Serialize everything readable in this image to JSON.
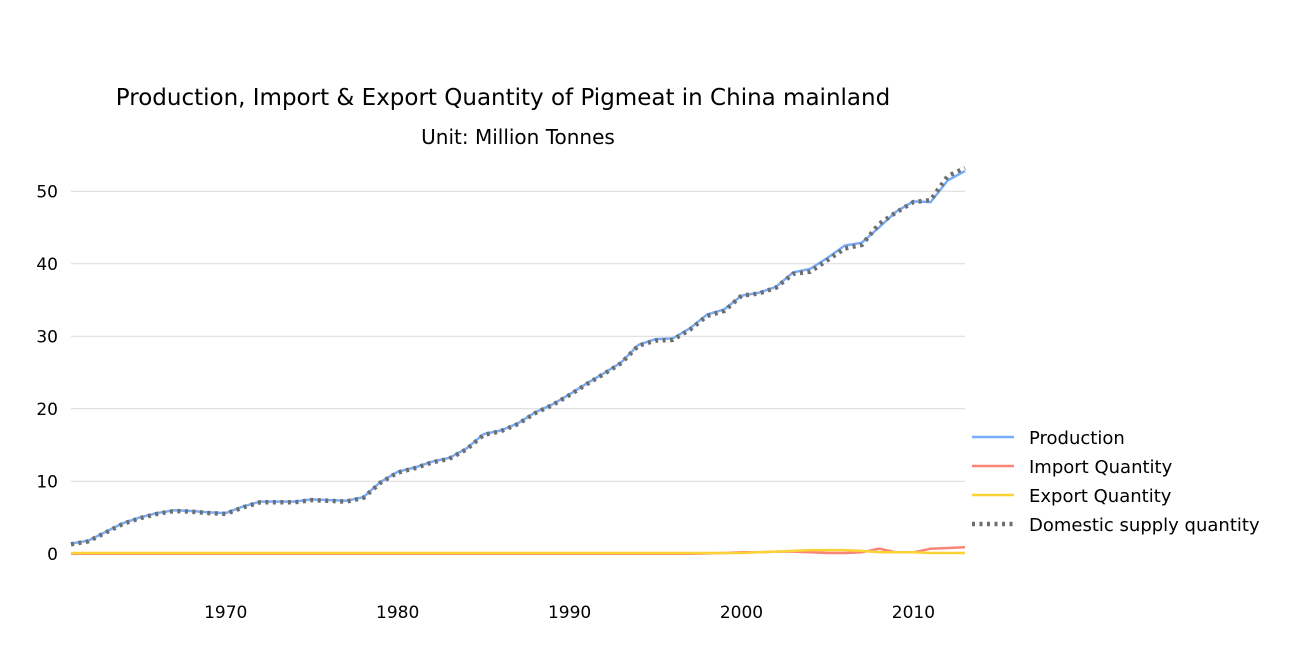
{
  "chart_data": {
    "type": "line",
    "title": "Production, Import & Export Quantity of Pigmeat in China mainland",
    "subtitle": "Unit: Million Tonnes",
    "xlabel": "",
    "ylabel": "",
    "xlim": [
      1961,
      2013
    ],
    "ylim": [
      -5,
      55
    ],
    "x_ticks": [
      1970,
      1980,
      1990,
      2000,
      2010
    ],
    "y_ticks": [
      0,
      10,
      20,
      30,
      40,
      50
    ],
    "grid": "horizontal",
    "legend_position": "right",
    "x": [
      1961,
      1962,
      1963,
      1964,
      1965,
      1966,
      1967,
      1968,
      1969,
      1970,
      1971,
      1972,
      1973,
      1974,
      1975,
      1976,
      1977,
      1978,
      1979,
      1980,
      1981,
      1982,
      1983,
      1984,
      1985,
      1986,
      1987,
      1988,
      1989,
      1990,
      1991,
      1992,
      1993,
      1994,
      1995,
      1996,
      1997,
      1998,
      1999,
      2000,
      2001,
      2002,
      2003,
      2004,
      2005,
      2006,
      2007,
      2008,
      2009,
      2010,
      2011,
      2012,
      2013
    ],
    "series": [
      {
        "name": "Production",
        "color": "#7aadf7",
        "style": "solid",
        "values": [
          1.4,
          1.8,
          3.0,
          4.2,
          5.0,
          5.6,
          6.0,
          5.9,
          5.7,
          5.6,
          6.5,
          7.2,
          7.2,
          7.2,
          7.5,
          7.4,
          7.3,
          7.8,
          9.9,
          11.3,
          11.9,
          12.7,
          13.2,
          14.5,
          16.5,
          17.0,
          18.0,
          19.5,
          20.6,
          22.0,
          23.5,
          24.9,
          26.4,
          28.8,
          29.6,
          29.7,
          31.1,
          33.0,
          33.7,
          35.6,
          36.0,
          36.8,
          38.8,
          39.3,
          40.8,
          42.5,
          42.9,
          45.0,
          47.2,
          48.6,
          48.5,
          51.5,
          52.8
        ]
      },
      {
        "name": "Import Quantity",
        "color": "#fa8577",
        "style": "solid",
        "values": [
          0,
          0,
          0,
          0,
          0,
          0,
          0,
          0,
          0,
          0,
          0,
          0,
          0,
          0,
          0,
          0,
          0,
          0,
          0,
          0,
          0,
          0,
          0,
          0,
          0,
          0,
          0,
          0,
          0,
          0,
          0,
          0,
          0,
          0,
          0,
          0,
          0,
          0.05,
          0.1,
          0.2,
          0.2,
          0.3,
          0.3,
          0.2,
          0.1,
          0.1,
          0.2,
          0.7,
          0.2,
          0.2,
          0.7,
          0.8,
          0.9
        ]
      },
      {
        "name": "Export Quantity",
        "color": "#fcd337",
        "style": "solid",
        "values": [
          0.1,
          0.1,
          0.1,
          0.1,
          0.1,
          0.1,
          0.1,
          0.1,
          0.1,
          0.1,
          0.1,
          0.1,
          0.1,
          0.1,
          0.1,
          0.1,
          0.1,
          0.1,
          0.1,
          0.1,
          0.1,
          0.1,
          0.1,
          0.1,
          0.1,
          0.1,
          0.1,
          0.1,
          0.1,
          0.1,
          0.1,
          0.1,
          0.1,
          0.1,
          0.1,
          0.1,
          0.1,
          0.1,
          0.1,
          0.1,
          0.2,
          0.3,
          0.4,
          0.5,
          0.5,
          0.5,
          0.4,
          0.2,
          0.2,
          0.2,
          0.1,
          0.1,
          0.1
        ]
      },
      {
        "name": "Domestic supply quantity",
        "color": "#6e6e6e",
        "style": "dotted",
        "values": [
          1.3,
          1.7,
          2.9,
          4.1,
          4.9,
          5.5,
          5.9,
          5.8,
          5.6,
          5.5,
          6.4,
          7.1,
          7.1,
          7.1,
          7.4,
          7.3,
          7.2,
          7.7,
          9.8,
          11.2,
          11.8,
          12.6,
          13.1,
          14.4,
          16.4,
          16.9,
          17.9,
          19.4,
          20.5,
          21.9,
          23.4,
          24.8,
          26.3,
          28.7,
          29.4,
          29.5,
          30.9,
          32.8,
          33.5,
          35.6,
          35.9,
          36.7,
          38.6,
          38.9,
          40.5,
          42.1,
          42.6,
          45.5,
          47.1,
          48.5,
          48.8,
          52.1,
          53.2
        ]
      }
    ]
  }
}
